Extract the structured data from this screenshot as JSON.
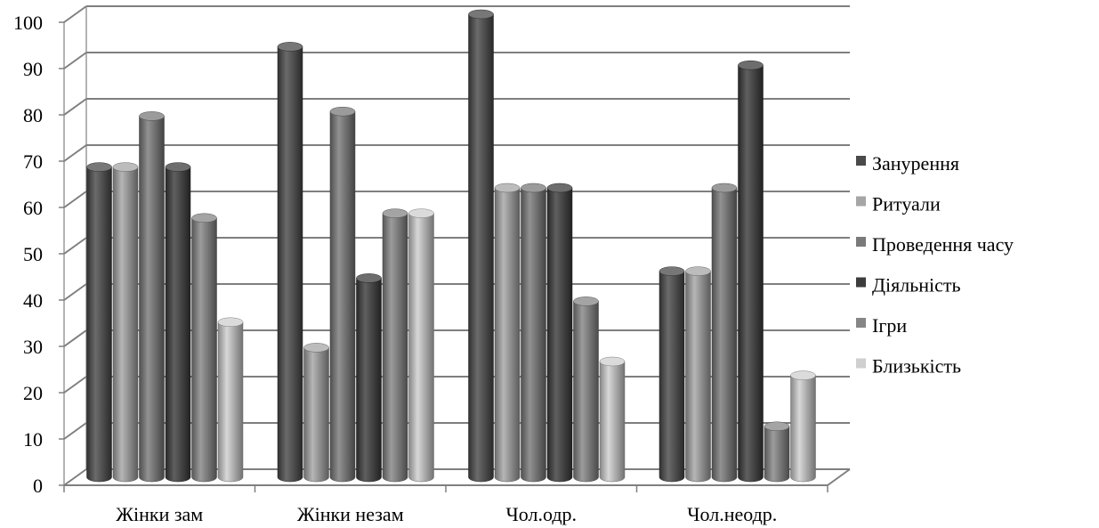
{
  "chart_data": {
    "type": "bar",
    "title": "",
    "xlabel": "",
    "ylabel": "",
    "ylim": [
      0,
      100
    ],
    "yticks": [
      0,
      10,
      20,
      30,
      40,
      50,
      60,
      70,
      80,
      90,
      100
    ],
    "grid": true,
    "legend_position": "right",
    "categories": [
      "Жінки зам",
      "Жінки незам",
      "Чол.одр.",
      "Чол.неодр."
    ],
    "series": [
      {
        "name": "Занурення",
        "color": "#4a4a4a",
        "values": [
          67,
          93,
          100,
          44.5
        ]
      },
      {
        "name": "Ритуали",
        "color": "#a6a6a6",
        "values": [
          67,
          28,
          62.5,
          44.5
        ]
      },
      {
        "name": "Проведення часу",
        "color": "#7a7a7a",
        "values": [
          78,
          79,
          62.5,
          62.5
        ]
      },
      {
        "name": "Діяльність",
        "color": "#3c3c3c",
        "values": [
          67,
          43,
          62.5,
          89
        ]
      },
      {
        "name": "Ігри",
        "color": "#868686",
        "values": [
          56,
          57,
          38,
          11
        ]
      },
      {
        "name": "Близькість",
        "color": "#cfcfcf",
        "values": [
          33.5,
          57,
          25,
          22
        ]
      }
    ]
  }
}
